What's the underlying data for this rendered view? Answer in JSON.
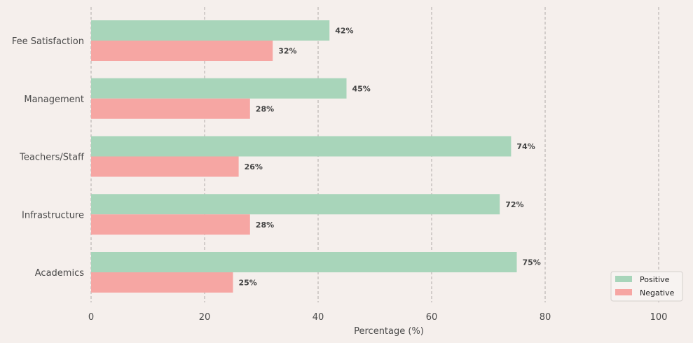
{
  "chart_data": {
    "type": "bar",
    "orientation": "horizontal",
    "categories": [
      "Academics",
      "Infrastructure",
      "Teachers/Staff",
      "Management",
      "Fee Satisfaction"
    ],
    "series": [
      {
        "name": "Positive",
        "values": [
          75,
          72,
          74,
          45,
          42
        ],
        "color": "#a8d5ba"
      },
      {
        "name": "Negative",
        "values": [
          25,
          28,
          26,
          28,
          32
        ],
        "color": "#f6a6a3"
      }
    ],
    "data_labels": {
      "Positive": [
        "75%",
        "72%",
        "74%",
        "45%",
        "42%"
      ],
      "Negative": [
        "25%",
        "28%",
        "26%",
        "28%",
        "32%"
      ]
    },
    "xlabel": "Percentage (%)",
    "ylabel": "",
    "title": "",
    "xlim": [
      0,
      105
    ],
    "x_ticks": [
      0,
      20,
      40,
      60,
      80,
      100
    ],
    "grid": "x-dashed",
    "legend_position": "bottom-right",
    "background": "#f5efec"
  }
}
